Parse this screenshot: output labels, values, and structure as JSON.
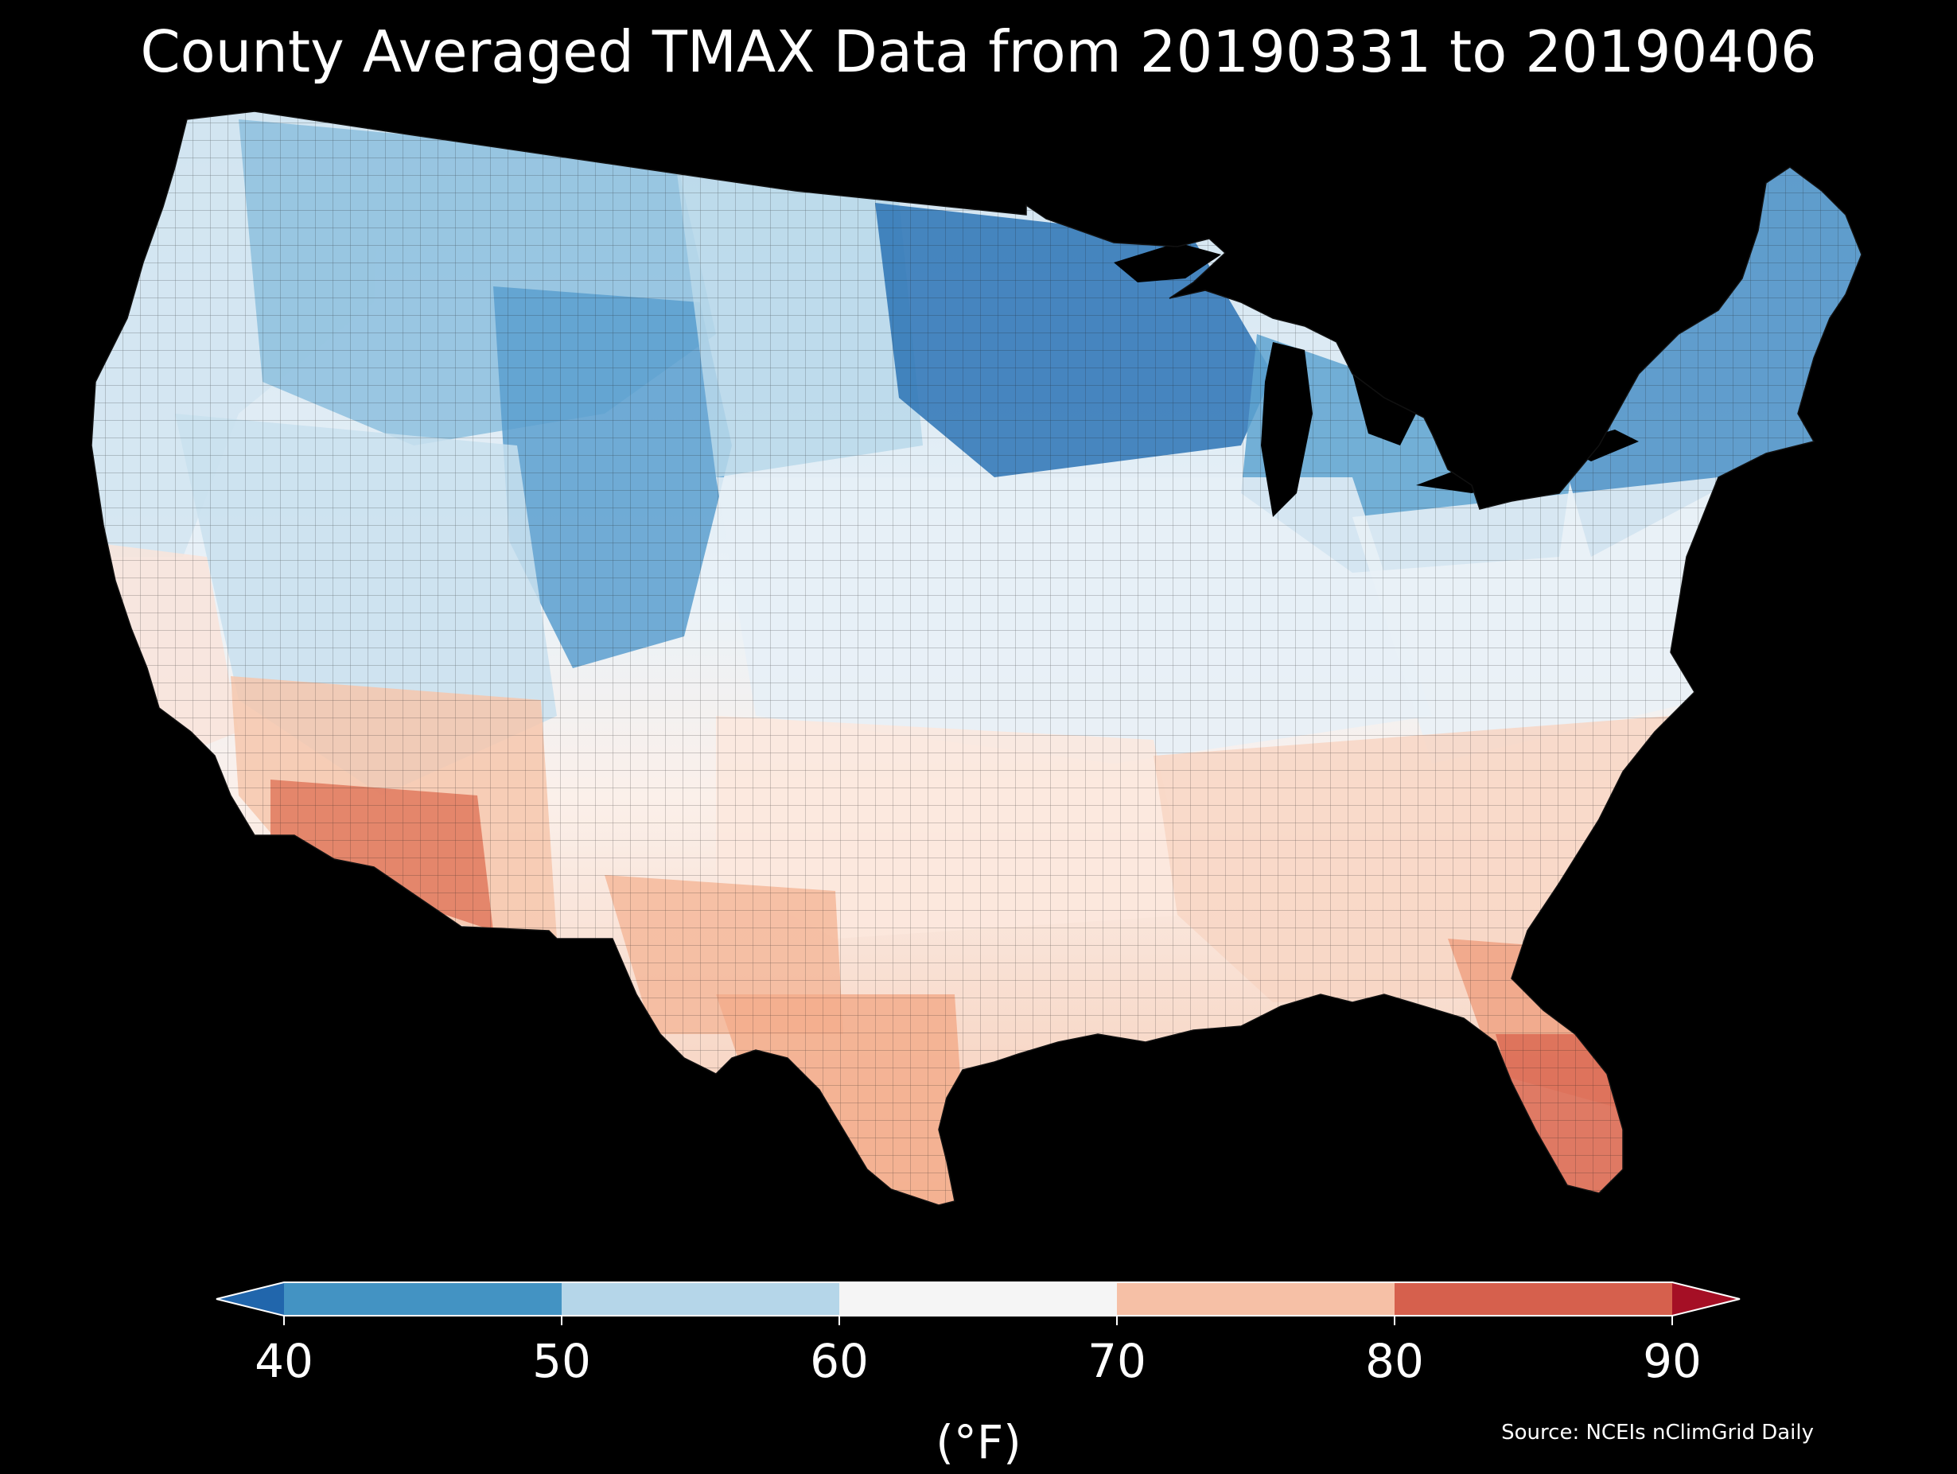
{
  "title": "County Averaged TMAX Data from 20190331 to 20190406",
  "colorbar": {
    "unit": "(°F)",
    "ticks": [
      "40",
      "50",
      "60",
      "70",
      "80",
      "90"
    ],
    "extend": "both",
    "bins": [
      {
        "range": "<40",
        "color": "#2166ac"
      },
      {
        "range": "40-50",
        "color": "#4393c3"
      },
      {
        "range": "50-60",
        "color": "#b5d6e9"
      },
      {
        "range": "60-70",
        "color": "#f5f5f5"
      },
      {
        "range": "70-80",
        "color": "#f6c0a6"
      },
      {
        "range": "80-90",
        "color": "#d6604d"
      },
      {
        "range": ">90",
        "color": "#a50f25"
      }
    ]
  },
  "map": {
    "type": "choropleth",
    "region": "Contiguous United States counties",
    "regions": [
      {
        "name": "pacific-northwest",
        "color": "#d2e5f1"
      },
      {
        "name": "northern-rockies",
        "color": "#8dbfde"
      },
      {
        "name": "wyoming-colorado-highlands",
        "color": "#5a9fcf"
      },
      {
        "name": "northern-plains",
        "color": "#b9d8ea"
      },
      {
        "name": "upper-midwest",
        "color": "#2c73b5"
      },
      {
        "name": "great-lakes",
        "color": "#5ea3d0"
      },
      {
        "name": "new-england",
        "color": "#4a8fc6"
      },
      {
        "name": "great-basin",
        "color": "#c9e0ee"
      },
      {
        "name": "central-plains-ohio-valley",
        "color": "#e6f0f7"
      },
      {
        "name": "mid-atlantic",
        "color": "#e9f1f7"
      },
      {
        "name": "california-coast",
        "color": "#f9e4da"
      },
      {
        "name": "desert-southwest",
        "color": "#f6c7ad"
      },
      {
        "name": "southern-arizona",
        "color": "#e0795e"
      },
      {
        "name": "southern-plains",
        "color": "#fbe7dd"
      },
      {
        "name": "deep-south",
        "color": "#f8d6c4"
      },
      {
        "name": "west-texas",
        "color": "#f5b99b"
      },
      {
        "name": "south-texas",
        "color": "#f3ad8c"
      },
      {
        "name": "florida",
        "color": "#f0a283"
      },
      {
        "name": "south-florida",
        "color": "#da6a54"
      }
    ]
  },
  "source": "Source: NCEIs nClimGrid Daily"
}
